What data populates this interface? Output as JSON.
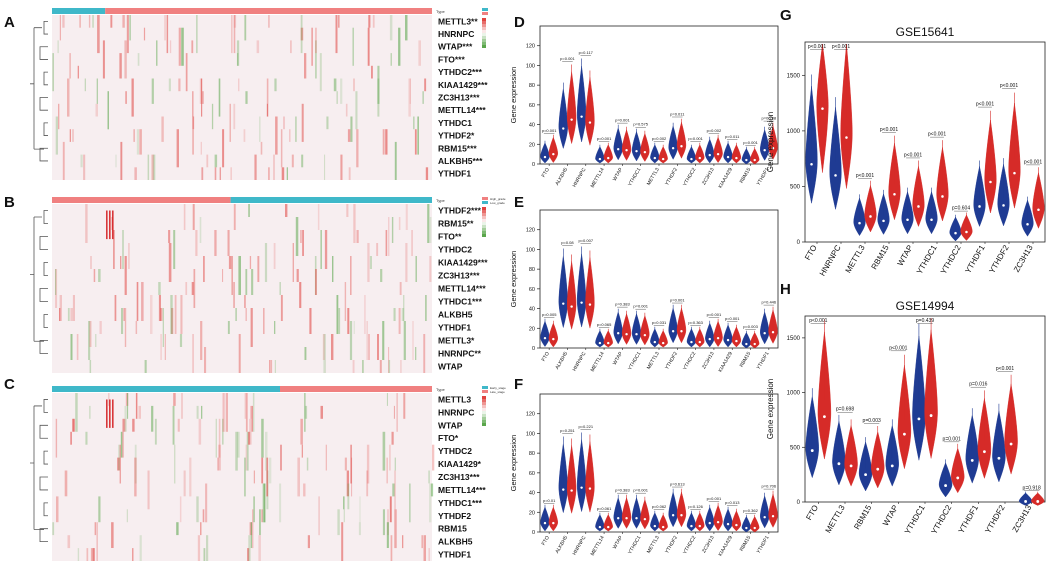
{
  "colors": {
    "blue": "#1f3b93",
    "red": "#d62b28",
    "heat_red": "#e0433f",
    "heat_green": "#5aa64b",
    "annot_teal": "#3fb8c9",
    "annot_salmon": "#f08080"
  },
  "heatmaps": [
    {
      "panel": "A",
      "legend_title": "Type",
      "genes": [
        "METTL3**",
        "HNRNPC",
        "WTAP***",
        "FTO***",
        "YTHDC2***",
        "KIAA1429***",
        "ZC3H13***",
        "METTL14***",
        "YTHDC1",
        "YTHDF2*",
        "RBM15***",
        "ALKBH5***",
        "YTHDF1"
      ],
      "annotation_split": 0.14,
      "annotation_first": "teal"
    },
    {
      "panel": "B",
      "legend_title": "Type",
      "legend_items": [
        "High_grade",
        "Low_grade"
      ],
      "genes": [
        "YTHDF2***",
        "RBM15**",
        "FTO**",
        "YTHDC2",
        "KIAA1429***",
        "ZC3H13***",
        "METTL14***",
        "YTHDC1***",
        "ALKBH5",
        "YTHDF1",
        "METTL3*",
        "HNRNPC**",
        "WTAP"
      ],
      "annotation_split": 0.47,
      "annotation_first": "salmon"
    },
    {
      "panel": "C",
      "legend_title": "Type",
      "legend_items": [
        "Early_stage",
        "Late_stage"
      ],
      "genes": [
        "METTL3",
        "HNRNPC",
        "WTAP",
        "FTO*",
        "YTHDC2",
        "KIAA1429*",
        "ZC3H13***",
        "METTL14***",
        "YTHDC1***",
        "YTHDF2",
        "RBM15",
        "ALKBH5",
        "YTHDF1"
      ],
      "annotation_split": 0.6,
      "annotation_first": "teal"
    }
  ],
  "chart_data": [
    {
      "panel": "D",
      "type": "violin",
      "ylabel": "Gene expression",
      "ylim": [
        0,
        140
      ],
      "yticks": [
        0,
        20,
        40,
        60,
        80,
        100,
        120
      ],
      "categories": [
        "FTO",
        "ALKBH5",
        "HNRNPC",
        "METTL14",
        "WTAP",
        "YTHDC1",
        "METTL3",
        "YTHDF2",
        "YTHDC2",
        "ZC3H13",
        "KIAA1429",
        "RBM15",
        "YTHDF1"
      ],
      "series": [
        {
          "name": "group1",
          "color": "blue",
          "values": [
            7,
            36,
            48,
            5,
            15,
            13,
            6,
            16,
            5,
            9,
            7,
            4,
            14
          ]
        },
        {
          "name": "group2",
          "color": "red",
          "values": [
            10,
            45,
            42,
            6,
            14,
            12,
            5,
            18,
            6,
            10,
            6,
            4,
            16
          ]
        }
      ],
      "pvalues": [
        "p=0.001",
        "p=0.001",
        "p=0.117",
        "p=0.001",
        "p=0.001",
        "p=0.575",
        "p=0.002",
        "p=0.011",
        "p=0.001",
        "p=0.002",
        "p=0.011",
        "p=0.001",
        "p=0.788"
      ]
    },
    {
      "panel": "E",
      "type": "violin",
      "ylabel": "Gene expression",
      "ylim": [
        0,
        140
      ],
      "yticks": [
        0,
        20,
        40,
        60,
        80,
        100,
        120
      ],
      "categories": [
        "FTO",
        "ALKBH5",
        "HNRNPC",
        "METTL14",
        "WTAP",
        "YTHDC1",
        "METTL3",
        "YTHDF2",
        "YTHDC2",
        "ZC3H13",
        "KIAA1429",
        "RBM15",
        "YTHDF1"
      ],
      "series": [
        {
          "name": "group1",
          "color": "blue",
          "values": [
            10,
            45,
            46,
            5,
            15,
            14,
            6,
            17,
            6,
            9,
            8,
            4,
            15
          ]
        },
        {
          "name": "group2",
          "color": "red",
          "values": [
            9,
            42,
            44,
            5,
            14,
            13,
            5,
            17,
            6,
            10,
            7,
            4,
            16
          ]
        }
      ],
      "pvalues": [
        "p=0.005",
        "p=0.08",
        "p=0.007",
        "p=0.065",
        "p=0.383",
        "p=0.001",
        "p=0.031",
        "p=0.001",
        "p=0.363",
        "p=0.001",
        "p=0.001",
        "p=0.003",
        "p=0.446"
      ]
    },
    {
      "panel": "F",
      "type": "violin",
      "ylabel": "Gene expression",
      "ylim": [
        0,
        140
      ],
      "yticks": [
        0,
        20,
        40,
        60,
        80,
        100,
        120
      ],
      "categories": [
        "FTO",
        "ALKBH5",
        "HNRNPC",
        "METTL14",
        "WTAP",
        "YTHDC1",
        "METTL3",
        "YTHDF2",
        "YTHDC2",
        "ZC3H13",
        "KIAA1429",
        "RBM15",
        "YTHDF1"
      ],
      "series": [
        {
          "name": "group1",
          "color": "blue",
          "values": [
            9,
            43,
            45,
            5,
            14,
            14,
            6,
            17,
            6,
            9,
            8,
            4,
            15
          ]
        },
        {
          "name": "group2",
          "color": "red",
          "values": [
            9,
            42,
            44,
            5,
            14,
            13,
            5,
            17,
            6,
            10,
            7,
            4,
            16
          ]
        }
      ],
      "pvalues": [
        "p=0.01",
        "p=0.251",
        "p=0.221",
        "p=0.061",
        "p=0.383",
        "p=0.001",
        "p=0.062",
        "p=0.613",
        "p=0.126",
        "p=0.001",
        "p=0.013",
        "p=0.362",
        "p=0.706"
      ]
    },
    {
      "panel": "G",
      "type": "violin",
      "title": "GSE15641",
      "ylabel": "Gene expression",
      "ylim": [
        0,
        1800
      ],
      "yticks": [
        0,
        500,
        1000,
        1500
      ],
      "categories": [
        "FTO",
        "HNRNPC",
        "METTL3",
        "RBM15",
        "WTAP",
        "YTHDC1",
        "YTHDC2",
        "YTHDF1",
        "YTHDF2",
        "ZC3H13"
      ],
      "series": [
        {
          "name": "group1",
          "color": "blue",
          "values": [
            700,
            600,
            170,
            190,
            200,
            200,
            80,
            320,
            330,
            160
          ]
        },
        {
          "name": "group2",
          "color": "red",
          "values": [
            1200,
            940,
            230,
            430,
            320,
            410,
            90,
            540,
            620,
            290
          ]
        }
      ],
      "pvalues": [
        "p<0.001",
        "p<0.001",
        "p<0.001",
        "p<0.001",
        "p<0.001",
        "p<0.001",
        "p=0.604",
        "p<0.001",
        "p<0.001",
        "p<0.001"
      ]
    },
    {
      "panel": "H",
      "type": "violin",
      "title": "GSE14994",
      "ylabel": "Gene expression",
      "ylim": [
        0,
        1700
      ],
      "yticks": [
        0,
        500,
        1000,
        1500
      ],
      "categories": [
        "FTO",
        "METTL3",
        "RBM15",
        "WTAP",
        "YTHDC1",
        "YTHDC2",
        "YTHDF1",
        "YTHDF2",
        "ZC3H13"
      ],
      "series": [
        {
          "name": "group1",
          "color": "blue",
          "values": [
            470,
            350,
            250,
            330,
            760,
            150,
            380,
            400,
            5
          ]
        },
        {
          "name": "group2",
          "color": "red",
          "values": [
            780,
            330,
            300,
            620,
            790,
            220,
            460,
            530,
            5
          ]
        }
      ],
      "pvalues": [
        "p<0.001",
        "p=0.698",
        "p=0.003",
        "p<0.001",
        "p=0.439",
        "p=0.001",
        "p=0.016",
        "p<0.001",
        "p=0.918"
      ]
    }
  ]
}
